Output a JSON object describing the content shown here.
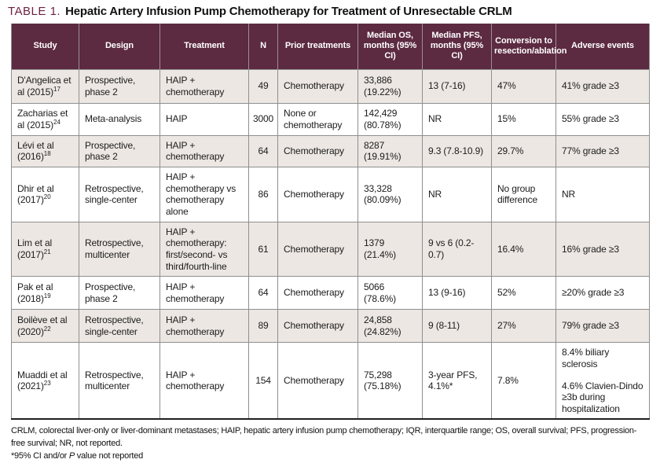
{
  "page": {
    "title_label": "TABLE 1.",
    "title_text": "Hepatic Artery Infusion Pump Chemotherapy for Treatment of Unresectable CRLM"
  },
  "table": {
    "columns": [
      "Study",
      "Design",
      "Treatment",
      "N",
      "Prior treatments",
      "Median OS, months (95% CI)",
      "Median PFS, months (95% CI)",
      "Conversion to resection/ablation",
      "Adverse events"
    ],
    "rows": [
      {
        "study": "D'Angelica et al (2015)",
        "ref": "17",
        "design": "Prospective, phase 2",
        "treatment": "HAIP + chemotherapy",
        "n": "49",
        "prior_treatments": "Chemotherapy",
        "median_os": "33,886 (19.22%)",
        "median_pfs": "13 (7-16)",
        "conversion": "47%",
        "adverse_events": [
          "41% grade ≥3"
        ]
      },
      {
        "study": "Zacharias et al (2015)",
        "ref": "24",
        "design": "Meta-analysis",
        "treatment": "HAIP",
        "n": "3000",
        "prior_treatments": "None or chemotherapy",
        "median_os": "142,429 (80.78%)",
        "median_pfs": "NR",
        "conversion": "15%",
        "adverse_events": [
          "55% grade ≥3"
        ]
      },
      {
        "study": "Lévi et al (2016)",
        "ref": "18",
        "design": "Prospective, phase 2",
        "treatment": "HAIP + chemotherapy",
        "n": "64",
        "prior_treatments": "Chemotherapy",
        "median_os": "8287 (19.91%)",
        "median_pfs": "9.3 (7.8-10.9)",
        "conversion": "29.7%",
        "adverse_events": [
          "77% grade ≥3"
        ]
      },
      {
        "study": "Dhir et al (2017)",
        "ref": "20",
        "design": "Retrospective, single-center",
        "treatment": "HAIP + chemotherapy vs chemotherapy alone",
        "n": "86",
        "prior_treatments": "Chemotherapy",
        "median_os": "33,328 (80.09%)",
        "median_pfs": "NR",
        "conversion": "No group difference",
        "adverse_events": [
          "NR"
        ]
      },
      {
        "study": "Lim et al (2017)",
        "ref": "21",
        "design": "Retrospective, multicenter",
        "treatment": "HAIP + chemotherapy: first/second- vs third/fourth-line",
        "n": "61",
        "prior_treatments": "Chemotherapy",
        "median_os": "1379 (21.4%)",
        "median_pfs": "9 vs 6 (0.2-0.7)",
        "conversion": "16.4%",
        "adverse_events": [
          "16% grade ≥3"
        ]
      },
      {
        "study": "Pak et al (2018)",
        "ref": "19",
        "design": "Prospective, phase 2",
        "treatment": "HAIP + chemotherapy",
        "n": "64",
        "prior_treatments": "Chemotherapy",
        "median_os": "5066 (78.6%)",
        "median_pfs": "13 (9-16)",
        "conversion": "52%",
        "adverse_events": [
          "≥20% grade ≥3"
        ]
      },
      {
        "study": "Boilève et al (2020)",
        "ref": "22",
        "design": "Retrospective, single-center",
        "treatment": "HAIP + chemotherapy",
        "n": "89",
        "prior_treatments": "Chemotherapy",
        "median_os": "24,858 (24.82%)",
        "median_pfs": "9 (8-11)",
        "conversion": "27%",
        "adverse_events": [
          "79% grade ≥3"
        ]
      },
      {
        "study": "Muaddi et al (2021)",
        "ref": "23",
        "design": "Retrospective, multicenter",
        "treatment": "HAIP + chemotherapy",
        "n": "154",
        "prior_treatments": "Chemotherapy",
        "median_os": "75,298 (75.18%)",
        "median_pfs": "3-year PFS, 4.1%*",
        "conversion": "7.8%",
        "adverse_events": [
          "8.4% biliary sclerosis",
          "4.6% Clavien-Dindo ≥3b during hospitalization"
        ]
      }
    ]
  },
  "footnotes": {
    "abbreviations": "CRLM, colorectal liver-only or liver-dominant metastases; HAIP, hepatic artery infusion pump chemotherapy; IQR, interquartile range; OS, overall survival; PFS, progression-free survival; NR, not reported.",
    "asterisk_prefix": "*95% CI and/or ",
    "asterisk_italic": "P",
    "asterisk_suffix": " value not reported"
  },
  "colors": {
    "header_bg": "#5c2a41",
    "title_accent": "#6e2344",
    "row_alt_bg": "#ece7e2",
    "row_bg": "#ffffff",
    "grid_border": "#8f8f8f",
    "header_separator": "#9e8e99",
    "bottom_rule": "#1f1f1f",
    "header_text": "#ffffff",
    "body_text": "#1c1c1c"
  }
}
